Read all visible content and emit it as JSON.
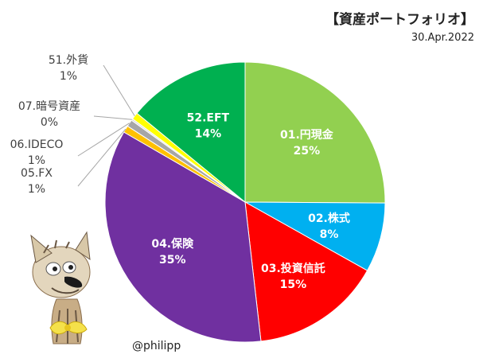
{
  "title": "【資産ポートフォリオ】",
  "date_label": "30.Apr.2022",
  "credit": "@philipp",
  "chart_data": {
    "type": "pie",
    "title": "【資産ポートフォリオ】",
    "subtitle": "30.Apr.2022",
    "start_angle_deg": 0,
    "direction": "clockwise",
    "slices": [
      {
        "label": "01.円現金",
        "value": 25,
        "percent_label": "25%",
        "color": "#92d050",
        "label_style": "inside-white"
      },
      {
        "label": "02.株式",
        "value": 8,
        "percent_label": "8%",
        "color": "#00b0f0",
        "label_style": "inside-white"
      },
      {
        "label": "03.投資信託",
        "value": 15,
        "percent_label": "15%",
        "color": "#ff0000",
        "label_style": "inside-white"
      },
      {
        "label": "04.保険",
        "value": 35,
        "percent_label": "35%",
        "color": "#7030a0",
        "label_style": "inside-white"
      },
      {
        "label": "05.FX",
        "value": 0.8,
        "percent_label": "1%",
        "color": "#ffc000",
        "label_style": "leader"
      },
      {
        "label": "06.IDECO",
        "value": 0.8,
        "percent_label": "1%",
        "color": "#a6a6a6",
        "label_style": "leader"
      },
      {
        "label": "07.暗号資産",
        "value": 0.2,
        "percent_label": "0%",
        "color": "#d9d9d9",
        "label_style": "leader"
      },
      {
        "label": "51.外貨",
        "value": 0.8,
        "percent_label": "1%",
        "color": "#ffff00",
        "label_style": "leader"
      },
      {
        "label": "52.EFT",
        "value": 14,
        "percent_label": "14%",
        "color": "#00b050",
        "label_style": "inside-white"
      }
    ]
  },
  "mascot": {
    "icon": "cat-figurine-icon",
    "accent": "#f5e14a"
  }
}
